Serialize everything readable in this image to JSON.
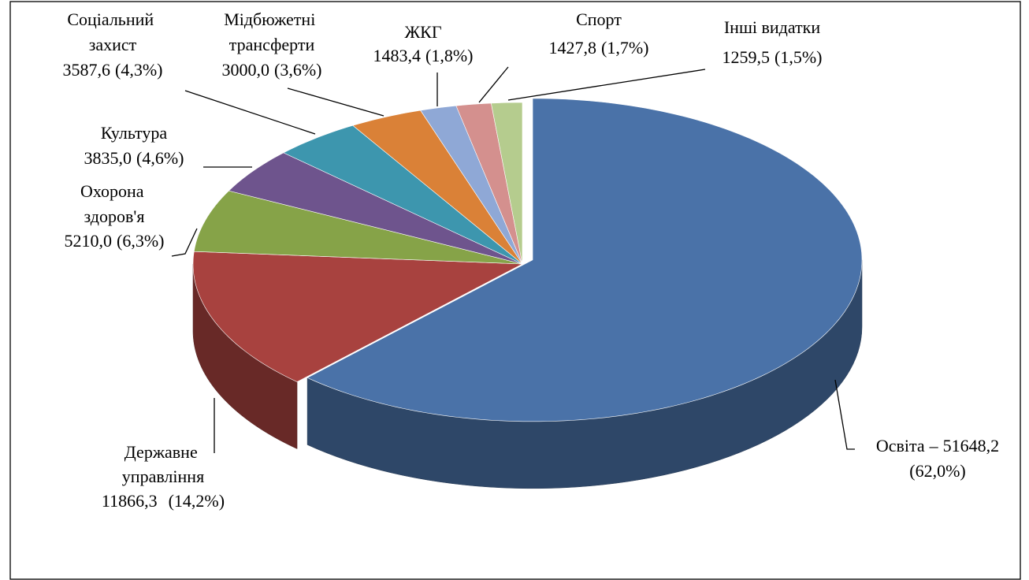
{
  "chart_data": {
    "type": "pie3d",
    "categories": [
      "Освіта",
      "Державне управління",
      "Охорона здоров'я",
      "Культура",
      "Соціальний захист",
      "Мідбюжетні трансферти",
      "ЖКГ",
      "Спорт",
      "Інші видатки"
    ],
    "values": [
      51648.2,
      11866.3,
      5210.0,
      3835.0,
      3587.6,
      3000.0,
      1483.4,
      1427.8,
      1259.5
    ],
    "value_labels": [
      "51648,2",
      "11866,3",
      "5210,0",
      "3835,0",
      "3587,6",
      "3000,0",
      "1483,4",
      "1427,8",
      "1259,5"
    ],
    "percents": [
      62.0,
      14.2,
      6.3,
      4.6,
      4.3,
      3.6,
      1.8,
      1.7,
      1.5
    ],
    "percent_labels": [
      "(62,0%)",
      "(14,2%)",
      "(6,3%)",
      "(4,6%)",
      "(4,3%)",
      "(3,6%)",
      "(1,8%)",
      "(1,7%)",
      "(1,5%)"
    ],
    "first_label_separator": "–",
    "colors": [
      "#4a72a8",
      "#a8423f",
      "#86a348",
      "#6e548d",
      "#3d96ae",
      "#da8137",
      "#8fa8d6",
      "#d4908e",
      "#b5cc8e"
    ]
  }
}
